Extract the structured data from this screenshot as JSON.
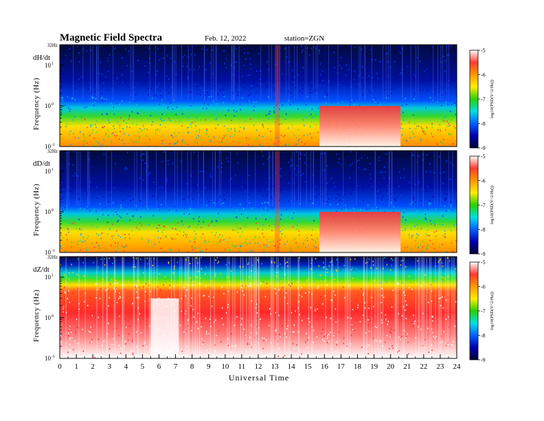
{
  "header": {
    "title": "Magnetic  Field  Spectra",
    "date": "Feb. 12, 2022",
    "station": "station=ZGN"
  },
  "chart_data": {
    "type": "heatmap",
    "xlabel": "Universal Time",
    "x_ticks": [
      "0",
      "1",
      "2",
      "3",
      "4",
      "5",
      "6",
      "7",
      "8",
      "9",
      "10",
      "11",
      "12",
      "13",
      "14",
      "15",
      "16",
      "17",
      "18",
      "19",
      "20",
      "21",
      "22",
      "23",
      "24"
    ],
    "xlim": [
      0,
      24
    ],
    "ylabel": "Frequency  (Hz)",
    "y_top_label": "32Hz",
    "y_ticks": [
      {
        "base": "10",
        "exp": "1",
        "value": 10
      },
      {
        "base": "10",
        "exp": "0",
        "value": 1
      },
      {
        "base": "10",
        "exp": "-1",
        "value": 0.1
      }
    ],
    "y_scale": "log",
    "ylim": [
      0.1,
      32
    ],
    "colorbar": {
      "label": "log10(PSD(V^2/Hz))",
      "ticks": [
        "-5",
        "-6",
        "-7",
        "-8",
        "-9"
      ],
      "range": [
        -9,
        -5
      ],
      "colors": [
        "#ffffff",
        "#ff3b2f",
        "#ff9800",
        "#ffee00",
        "#2ad100",
        "#00e0e0",
        "#0060ff",
        "#0000b0",
        "#000033"
      ]
    },
    "panels": [
      {
        "name": "dH/dt",
        "noise_floor_hz": 1.5,
        "events": [
          {
            "start_ut": 13.0,
            "end_ut": 13.3,
            "note": "broadband burst"
          },
          {
            "start_ut": 15.7,
            "end_ut": 20.6,
            "note": "enhanced low-frequency power"
          }
        ]
      },
      {
        "name": "dD/dt",
        "noise_floor_hz": 1.4,
        "events": [
          {
            "start_ut": 13.0,
            "end_ut": 13.3,
            "note": "broadband burst"
          },
          {
            "start_ut": 15.7,
            "end_ut": 20.6,
            "note": "enhanced low-frequency power"
          }
        ]
      },
      {
        "name": "dZ/dt",
        "noise_floor_hz": 9,
        "events": [
          {
            "start_ut": 5.5,
            "end_ut": 7.2,
            "note": "strong low-frequency power"
          }
        ]
      }
    ]
  }
}
